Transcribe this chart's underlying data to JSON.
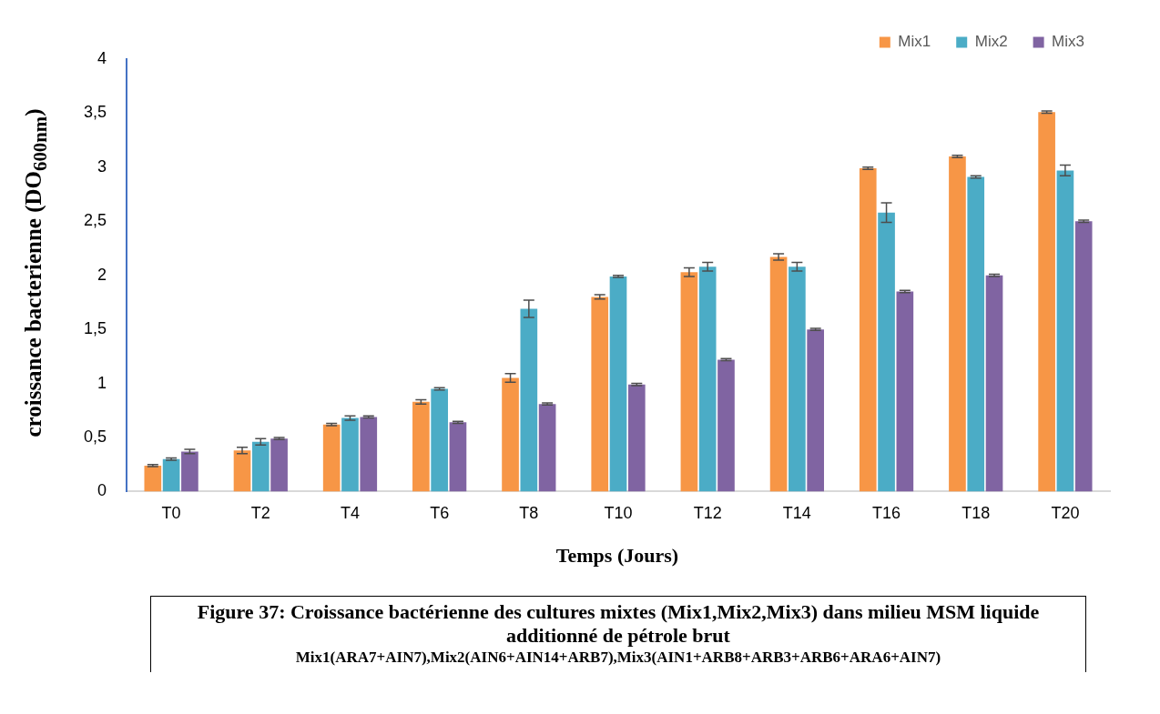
{
  "chart_data": {
    "type": "bar",
    "xlabel": "Temps (Jours)",
    "ylabel": "croissance bacterienne (DO$_{600nm}$)",
    "categories": [
      "T0",
      "T2",
      "T4",
      "T6",
      "T8",
      "T10",
      "T12",
      "T14",
      "T16",
      "T18",
      "T20"
    ],
    "series": [
      {
        "name": "Mix1",
        "color": "#f79646",
        "values": [
          0.24,
          0.38,
          0.62,
          0.83,
          1.05,
          1.8,
          2.03,
          2.17,
          2.99,
          3.1,
          3.51
        ],
        "errors": [
          0.01,
          0.03,
          0.01,
          0.02,
          0.04,
          0.02,
          0.04,
          0.03,
          0.01,
          0.01,
          0.01
        ]
      },
      {
        "name": "Mix2",
        "color": "#4bacc6",
        "values": [
          0.3,
          0.46,
          0.68,
          0.95,
          1.69,
          1.99,
          2.08,
          2.08,
          2.58,
          2.91,
          2.97
        ],
        "errors": [
          0.01,
          0.03,
          0.02,
          0.01,
          0.08,
          0.01,
          0.04,
          0.04,
          0.09,
          0.01,
          0.05
        ]
      },
      {
        "name": "Mix3",
        "color": "#8064a2",
        "values": [
          0.37,
          0.49,
          0.69,
          0.64,
          0.81,
          0.99,
          1.22,
          1.5,
          1.85,
          2.0,
          2.5
        ],
        "errors": [
          0.02,
          0.01,
          0.01,
          0.01,
          0.01,
          0.01,
          0.01,
          0.01,
          0.01,
          0.01,
          0.01
        ]
      }
    ],
    "ylim": [
      0,
      4
    ],
    "yticks": [
      0,
      {
        "value": 0.5,
        "label": "0,5"
      },
      1,
      {
        "value": 1.5,
        "label": "1,5"
      },
      2,
      {
        "value": 2.5,
        "label": "2,5"
      },
      3,
      {
        "value": 3.5,
        "label": "3,5"
      },
      4
    ],
    "grid": false,
    "legend": "top right",
    "annotations": [
      "Figure 37: Croissance bactérienne des cultures mixtes (Mix1,Mix2,Mix3) dans milieu MSM liquide additionné de pétrole brut",
      "Mix1(ARA7+AIN7),Mix2(AIN6+AIN14+ARB7),Mix3(AIN1+ARB8+ARB3+ARB6+ARA6+AIN7)"
    ]
  }
}
